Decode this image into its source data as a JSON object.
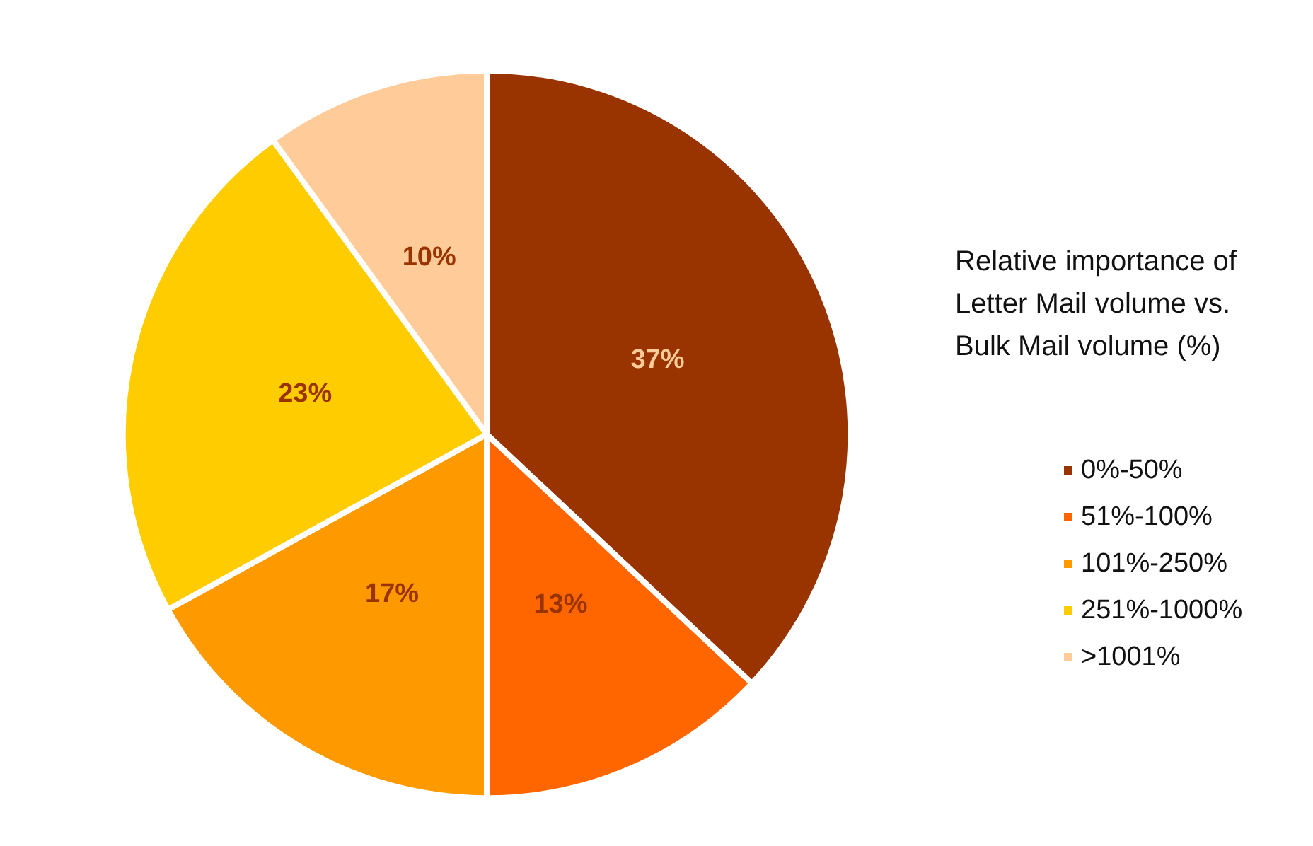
{
  "chart_data": {
    "type": "pie",
    "legend_title": "Relative importance of Letter Mail volume vs. Bulk Mail volume (%)",
    "categories": [
      "0%-50%",
      "51%-100%",
      "101%-250%",
      "251%-1000%",
      ">1001%"
    ],
    "values": [
      37,
      13,
      17,
      23,
      10
    ],
    "colors": [
      "#993300",
      "#ff6600",
      "#ff9900",
      "#ffcc00",
      "#ffcc99"
    ],
    "value_labels": [
      "37%",
      "13%",
      "17%",
      "23%",
      "10%"
    ],
    "legend": "right"
  }
}
